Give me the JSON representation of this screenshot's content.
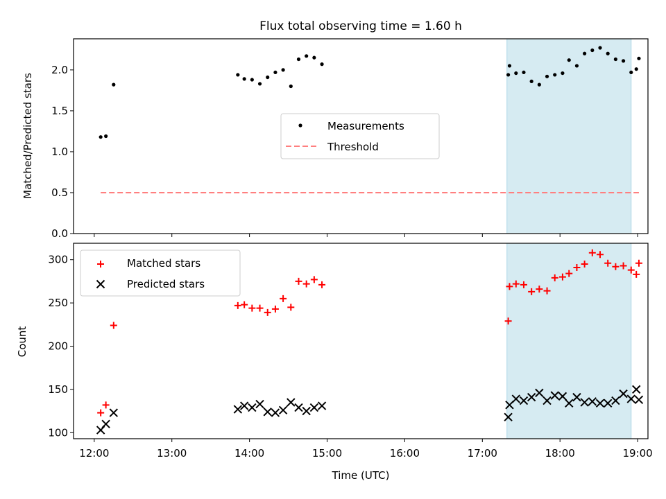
{
  "chart_data": [
    {
      "type": "scatter",
      "title": "Flux total observing time = 1.60 h",
      "xlabel": "",
      "ylabel": "Matched/Predicted stars",
      "xlim": [
        "11:44",
        "19:08"
      ],
      "ylim": [
        0,
        2.38
      ],
      "yticks": [
        "0.0",
        "0.5",
        "1.0",
        "1.5",
        "2.0"
      ],
      "shaded_span": {
        "from": "17:19",
        "to": "18:55",
        "color": "#add8e6"
      },
      "legend": {
        "position": "center",
        "entries": [
          "Measurements",
          "Threshold"
        ]
      },
      "series": [
        {
          "name": "Measurements",
          "kind": "points",
          "color": "#000000",
          "x": [
            "12:05",
            "12:09",
            "12:15",
            "13:51",
            "13:56",
            "14:02",
            "14:08",
            "14:14",
            "14:20",
            "14:26",
            "14:32",
            "14:38",
            "14:44",
            "14:50",
            "14:56",
            "17:20",
            "17:21",
            "17:26",
            "17:32",
            "17:38",
            "17:44",
            "17:50",
            "17:56",
            "18:02",
            "18:07",
            "18:13",
            "18:19",
            "18:25",
            "18:31",
            "18:37",
            "18:43",
            "18:49",
            "18:55",
            "18:59",
            "19:01"
          ],
          "y": [
            1.18,
            1.19,
            1.82,
            1.94,
            1.89,
            1.88,
            1.83,
            1.91,
            1.97,
            2.0,
            1.8,
            2.13,
            2.17,
            2.15,
            2.07,
            1.94,
            2.05,
            1.96,
            1.97,
            1.86,
            1.82,
            1.92,
            1.94,
            1.96,
            2.12,
            2.05,
            2.2,
            2.24,
            2.27,
            2.2,
            2.13,
            2.11,
            1.97,
            2.01,
            2.14
          ]
        },
        {
          "name": "Threshold",
          "kind": "dashed-line",
          "color": "#ff7f7f",
          "x": [
            "12:05",
            "19:01"
          ],
          "y": [
            0.5,
            0.5
          ]
        }
      ]
    },
    {
      "type": "scatter",
      "title": "",
      "xlabel": "Time (UTC)",
      "ylabel": "Count",
      "xlim": [
        "11:44",
        "19:08"
      ],
      "ylim": [
        93,
        319
      ],
      "xticks": [
        "12:00",
        "13:00",
        "14:00",
        "15:00",
        "16:00",
        "17:00",
        "18:00",
        "19:00"
      ],
      "yticks": [
        "100",
        "150",
        "200",
        "250",
        "300"
      ],
      "shaded_span": {
        "from": "17:19",
        "to": "18:55",
        "color": "#add8e6"
      },
      "legend": {
        "position": "top-left",
        "entries": [
          "Matched stars",
          "Predicted stars"
        ]
      },
      "series": [
        {
          "name": "Matched stars",
          "marker": "plus",
          "color": "#ff0000",
          "x": [
            "12:05",
            "12:09",
            "12:15",
            "13:51",
            "13:56",
            "14:02",
            "14:08",
            "14:14",
            "14:20",
            "14:26",
            "14:32",
            "14:38",
            "14:44",
            "14:50",
            "14:56",
            "17:20",
            "17:21",
            "17:26",
            "17:32",
            "17:38",
            "17:44",
            "17:50",
            "17:56",
            "18:02",
            "18:07",
            "18:13",
            "18:19",
            "18:25",
            "18:31",
            "18:37",
            "18:43",
            "18:49",
            "18:55",
            "18:59",
            "19:01"
          ],
          "y": [
            123,
            132,
            224,
            247,
            248,
            244,
            244,
            239,
            243,
            255,
            245,
            275,
            272,
            277,
            271,
            229,
            269,
            272,
            271,
            263,
            266,
            264,
            279,
            280,
            284,
            291,
            295,
            308,
            306,
            296,
            292,
            293,
            288,
            283,
            296
          ]
        },
        {
          "name": "Predicted stars",
          "marker": "x",
          "color": "#000000",
          "x": [
            "12:05",
            "12:09",
            "12:15",
            "13:51",
            "13:56",
            "14:02",
            "14:08",
            "14:14",
            "14:20",
            "14:26",
            "14:32",
            "14:38",
            "14:44",
            "14:50",
            "14:56",
            "17:20",
            "17:21",
            "17:26",
            "17:32",
            "17:38",
            "17:44",
            "17:50",
            "17:56",
            "18:02",
            "18:07",
            "18:13",
            "18:19",
            "18:25",
            "18:31",
            "18:37",
            "18:43",
            "18:49",
            "18:55",
            "18:59",
            "19:01"
          ],
          "y": [
            103,
            110,
            123,
            127,
            131,
            129,
            133,
            124,
            123,
            126,
            135,
            129,
            125,
            129,
            131,
            118,
            132,
            139,
            137,
            141,
            146,
            137,
            143,
            142,
            134,
            141,
            135,
            136,
            134,
            134,
            137,
            145,
            139,
            150,
            138
          ]
        }
      ]
    }
  ]
}
